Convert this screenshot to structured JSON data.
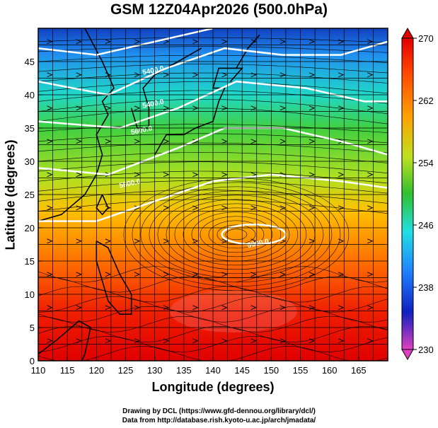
{
  "title": "GSM 12Z04Apr2026 (500.0hPa)",
  "x_axis_label": "Longitude (degrees)",
  "y_axis_label": "Latitude  (degrees)",
  "credits": {
    "line1": "Drawing by DCL (https://www.gfd-dennou.org/library/dcl/)",
    "line2": "Data from http://database.rish.kyoto-u.ac.jp/arch/jmadata/"
  },
  "map": {
    "lon_range": [
      110,
      170
    ],
    "lat_range": [
      0,
      50
    ],
    "lon_ticks": [
      "110",
      "115",
      "120",
      "125",
      "130",
      "135",
      "140",
      "145",
      "150",
      "155",
      "160",
      "165"
    ],
    "lat_ticks": [
      "0",
      "5",
      "10",
      "15",
      "20",
      "25",
      "30",
      "35",
      "40",
      "45"
    ],
    "contour_labels": [
      "5400.0",
      "5400.0",
      "5600.0",
      "5800.0",
      "5900.0"
    ]
  },
  "colorbar": {
    "range": [
      230,
      270
    ],
    "tick_labels": [
      "270",
      "262",
      "254",
      "246",
      "238",
      "230"
    ],
    "colors": [
      "#e040c0",
      "#1020c0",
      "#2080ff",
      "#20e0e0",
      "#40d040",
      "#ffd000",
      "#ff8000",
      "#e00000"
    ]
  }
}
